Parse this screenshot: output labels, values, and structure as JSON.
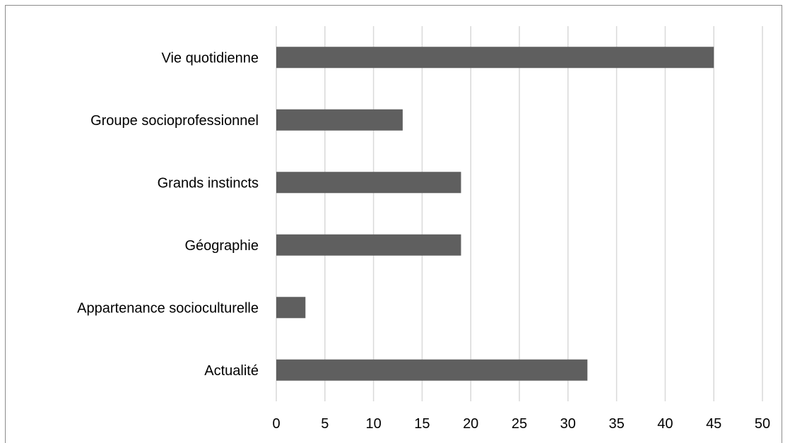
{
  "chart_data": {
    "type": "bar",
    "orientation": "horizontal",
    "categories": [
      "Vie quotidienne",
      "Groupe socioprofessionnel",
      "Grands instincts",
      "Géographie",
      "Appartenance socioculturelle",
      "Actualité"
    ],
    "values": [
      45,
      13,
      19,
      19,
      3,
      32
    ],
    "title": "",
    "xlabel": "",
    "ylabel": "",
    "xlim": [
      0,
      50
    ],
    "xticks": [
      "0",
      "5",
      "10",
      "15",
      "20",
      "25",
      "30",
      "35",
      "40",
      "45",
      "50"
    ],
    "grid": "vertical",
    "legend": "none",
    "colors": {
      "bar": "#5f5f5f",
      "gridline": "#d9d9d9",
      "frame": "#8c8c8c"
    }
  }
}
